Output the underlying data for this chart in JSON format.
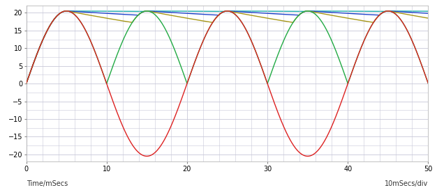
{
  "xlabel": "Time/mSecs",
  "ylabel_right": "10mSecs/div",
  "xlim": [
    0,
    50
  ],
  "ylim": [
    -22,
    22
  ],
  "yticks": [
    -20,
    -15,
    -10,
    -5,
    0,
    5,
    10,
    15,
    20
  ],
  "xticks": [
    0,
    10,
    20,
    30,
    40,
    50
  ],
  "amplitude": 20.5,
  "frequency_hz": 50,
  "bg_color": "#ffffff",
  "grid_color": "#c8c8d8",
  "colors": {
    "ac": "#dd2222",
    "rectified": "#22aa44",
    "cap_small": "#a89818",
    "cap_medium": "#2244cc",
    "cap_large": "#18aaaa"
  },
  "cap_params": {
    "small": {
      "C": 4.7e-05,
      "R": 1000
    },
    "medium": {
      "C": 0.00015,
      "R": 1000
    },
    "large": {
      "C": 0.0015,
      "R": 1000
    }
  },
  "xlabel_fontsize": 7,
  "tick_fontsize": 7
}
